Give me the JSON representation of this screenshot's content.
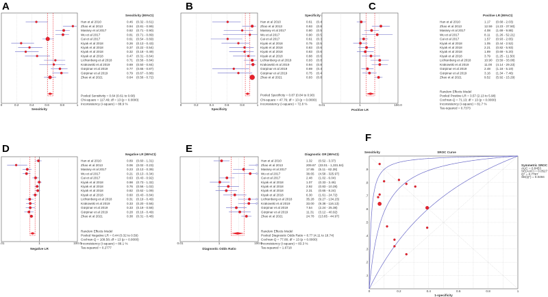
{
  "studies": [
    "Han et al 2010",
    "Zhao et al 2013",
    "Massey et al 2017",
    "Wu et al 2017",
    "Cai et al 2017",
    "Kiyak et al 2018",
    "Kiyak et al 2018",
    "Kiyak et al 2018",
    "Kiyak et al 2018",
    "Lichtenberg et al 2018",
    "Krakowski et al 2019",
    "Gürpinar et al 2019",
    "Gürpinar et al 2019",
    "Zhao et al 2021"
  ],
  "colors": {
    "marker": "#e8202a",
    "ci": "#8080d0",
    "pooled_line": "#e8202a",
    "grid": "#cccccc",
    "curve": "#6a6ac8"
  },
  "chart_data": [
    {
      "id": "A",
      "type": "forest",
      "panel_label": "A",
      "header": "Sensitivity (95%CI)",
      "xlabel": "Sensitivity",
      "scale": "linear",
      "xlim": [
        0,
        1
      ],
      "ticks": [
        "0",
        "0.2",
        "0.4",
        "0.6",
        "0.8",
        "1"
      ],
      "tick_values": [
        0,
        0.2,
        0.4,
        0.6,
        0.8,
        1
      ],
      "est": [
        0.46,
        0.94,
        0.82,
        0.81,
        0.61,
        0.26,
        0.37,
        0.32,
        0.47,
        0.71,
        0.69,
        0.77,
        0.79,
        0.64
      ],
      "lo": [
        0.32,
        0.81,
        0.71,
        0.71,
        0.54,
        0.13,
        0.22,
        0.18,
        0.31,
        0.56,
        0.5,
        0.65,
        0.67,
        0.56
      ],
      "hi": [
        0.61,
        0.99,
        0.9,
        0.89,
        0.69,
        0.43,
        0.54,
        0.49,
        0.64,
        0.84,
        0.84,
        0.87,
        0.88,
        0.72
      ],
      "est_text": [
        "0.46",
        "0.94",
        "0.82",
        "0.81",
        "0.61",
        "0.26",
        "0.37",
        "0.32",
        "0.47",
        "0.71",
        "0.69",
        "0.77",
        "0.79",
        "0.64"
      ],
      "ci_text": [
        "(0.32 - 0.61)",
        "(0.81 - 0.99)",
        "(0.71 - 0.90)",
        "(0.71 - 0.89)",
        "(0.54 - 0.69)",
        "(0.13 - 0.43)",
        "(0.22 - 0.54)",
        "(0.18 - 0.49)",
        "(0.31 - 0.64)",
        "(0.56 - 0.84)",
        "(0.50 - 0.84)",
        "(0.65 - 0.87)",
        "(0.67 - 0.88)",
        "(0.56 - 0.72)"
      ],
      "weight": [
        1,
        1,
        1.2,
        1.2,
        1.9,
        1,
        1,
        1,
        1,
        1,
        1,
        1.1,
        1.1,
        1.6
      ],
      "pooled": {
        "est": 0.64,
        "lo": 0.61,
        "hi": 0.68
      },
      "footer": [
        "Pooled Sensitivity = 0.64 (0.61 to 0.68)",
        "Chi-square = 117.49; df = 13 (p = 0.0000)",
        "Inconsistency (I-square) = 88.9 %"
      ]
    },
    {
      "id": "B",
      "type": "forest",
      "panel_label": "B",
      "header": "Specificity (95%CI)",
      "xlabel": "Specificity",
      "scale": "linear",
      "xlim": [
        0,
        1
      ],
      "ticks": [
        "0",
        "0.2",
        "0.4",
        "0.6",
        "0.8",
        "1"
      ],
      "tick_values": [
        0,
        0.2,
        0.4,
        0.6,
        0.8,
        1
      ],
      "est": [
        0.61,
        0.93,
        0.8,
        0.9,
        0.61,
        0.75,
        0.83,
        0.83,
        0.88,
        0.93,
        0.94,
        0.69,
        0.75,
        0.93
      ],
      "lo": [
        0.41,
        0.8,
        0.56,
        0.55,
        0.39,
        0.53,
        0.63,
        0.63,
        0.68,
        0.82,
        0.85,
        0.41,
        0.48,
        0.89
      ],
      "hi": [
        0.78,
        0.98,
        0.94,
        1.0,
        0.8,
        0.9,
        0.95,
        0.95,
        0.97,
        0.99,
        0.98,
        0.89,
        0.93,
        0.96
      ],
      "est_text": [
        "0.61",
        "0.93",
        "0.80",
        "0.90",
        "0.61",
        "0.75",
        "0.83",
        "0.83",
        "0.88",
        "0.93",
        "0.94",
        "0.69",
        "0.75",
        "0.93"
      ],
      "ci_text": [
        "(0.41 - 0.78)",
        "(0.80 - 0.98)",
        "(0.56 - 0.94)",
        "(0.55 - 1.00)",
        "(0.39 - 0.80)",
        "(0.53 - 0.90)",
        "(0.63 - 0.95)",
        "(0.63 - 0.95)",
        "(0.68 - 0.97)",
        "(0.82 - 0.99)",
        "(0.85 - 0.98)",
        "(0.41 - 0.89)",
        "(0.48 - 0.93)",
        "(0.89 - 0.96)"
      ],
      "weight": [
        1,
        1.3,
        1,
        1,
        1,
        1,
        1,
        1,
        1,
        1.3,
        1.4,
        1,
        1,
        2.4
      ],
      "pooled": {
        "est": 0.87,
        "lo": 0.84,
        "hi": 0.9
      },
      "footer": [
        "Pooled Specificity = 0.87 (0.84 to 0.90)",
        "Chi-square = 47.76; df = 13 (p = 0.0000)",
        "Inconsistency (I-square) = 72.8 %"
      ]
    },
    {
      "id": "C",
      "type": "forest",
      "panel_label": "C",
      "header": "Positive LR (95%CI)",
      "xlabel": "Positive LR",
      "scale": "log",
      "xlim": [
        0.01,
        100
      ],
      "ticks": [
        "0.01",
        "1",
        "100.0"
      ],
      "tick_values": [
        0.01,
        1,
        100
      ],
      "est": [
        1.17,
        12.59,
        4.08,
        8.11,
        1.57,
        1.05,
        2.21,
        1.89,
        3.79,
        10.9,
        11.0,
        2.48,
        3.16,
        9.52
      ],
      "lo": [
        0.68,
        4.23,
        1.69,
        1.26,
        0.93,
        0.44,
        0.82,
        0.69,
        1.25,
        3.59,
        4.14,
        1.18,
        1.34,
        5.92
      ],
      "hi": [
        2.03,
        37.5,
        9.88,
        52.21,
        2.65,
        2.52,
        5.93,
        5.2,
        11.5,
        33.08,
        29.23,
        5.19,
        7.46,
        15.29
      ],
      "est_text": [
        "1.17",
        "12.59",
        "4.08",
        "8.11",
        "1.57",
        "1.05",
        "2.21",
        "1.89",
        "3.79",
        "10.90",
        "11.00",
        "2.48",
        "3.16",
        "9.52"
      ],
      "ci_text": [
        "(0.68 - 2.03)",
        "(4.23 - 37.50)",
        "(1.69 - 9.88)",
        "(1.26 - 52.21)",
        "(0.93 - 2.65)",
        "(0.44 - 2.52)",
        "(0.82 - 5.93)",
        "(0.69 - 5.20)",
        "(1.25 - 11.50)",
        "(3.59 - 33.08)",
        "(4.14 - 29.23)",
        "(1.18 - 5.19)",
        "(1.34 - 7.46)",
        "(5.92 - 15.29)"
      ],
      "weight": [
        1.2,
        1.2,
        1.2,
        1.2,
        1.2,
        1.2,
        1.2,
        1.2,
        1.2,
        1.2,
        1.2,
        1.2,
        1.2,
        1.2
      ],
      "pooled": {
        "est": 3.57,
        "lo": 2.13,
        "hi": 5.98
      },
      "footer": [
        "Random Effects Model",
        "Pooled Positive LR = 3.57 (2.13 to 5.98)",
        "Cochran-Q = 71.13; df = 13 (p = 0.0000)",
        "Inconsistency (I-square) = 81.7 %",
        "Tau-squared = 0.7373"
      ]
    },
    {
      "id": "D",
      "type": "forest",
      "panel_label": "D",
      "header": "Negative LR (95%CI)",
      "xlabel": "Negative LR",
      "scale": "log",
      "xlim": [
        0.01,
        100
      ],
      "ticks": [
        "0.01",
        "1",
        "100.0"
      ],
      "tick_values": [
        0.01,
        1,
        100
      ],
      "est": [
        0.89,
        0.06,
        0.23,
        0.21,
        0.63,
        0.98,
        0.76,
        0.82,
        0.6,
        0.31,
        0.33,
        0.33,
        0.28,
        0.38
      ],
      "lo": [
        0.6,
        0.02,
        0.13,
        0.13,
        0.43,
        0.73,
        0.56,
        0.62,
        0.43,
        0.19,
        0.2,
        0.19,
        0.16,
        0.31
      ],
      "hi": [
        1.31,
        0.23,
        0.39,
        0.34,
        0.92,
        1.32,
        1.02,
        1.09,
        0.84,
        0.49,
        0.56,
        0.58,
        0.49,
        0.48
      ],
      "est_text": [
        "0.89",
        "0.06",
        "0.23",
        "0.21",
        "0.63",
        "0.98",
        "0.76",
        "0.82",
        "0.60",
        "0.31",
        "0.33",
        "0.33",
        "0.28",
        "0.38"
      ],
      "ci_text": [
        "(0.60 - 1.31)",
        "(0.02 - 0.23)",
        "(0.13 - 0.39)",
        "(0.13 - 0.34)",
        "(0.43 - 0.92)",
        "(0.73 - 1.32)",
        "(0.56 - 1.02)",
        "(0.62 - 1.09)",
        "(0.43 - 0.84)",
        "(0.19 - 0.49)",
        "(0.20 - 0.56)",
        "(0.19 - 0.58)",
        "(0.16 - 0.49)",
        "(0.31 - 0.48)"
      ],
      "weight": [
        1.2,
        1,
        1.2,
        1.2,
        1.2,
        1.2,
        1.2,
        1.2,
        1.2,
        1.2,
        1.2,
        1.2,
        1.2,
        1.3
      ],
      "pooled": {
        "est": 0.44,
        "lo": 0.32,
        "hi": 0.59
      },
      "footer": [
        "Random Effects Model",
        "Pooled Negative LR = 0.44 (0.32 to 0.59)",
        "Cochran-Q = 109.58; df = 13 (p = 0.0000)",
        "Inconsistency (I-square) = 88.1 %",
        "Tau-squared = 0.2777"
      ]
    },
    {
      "id": "E",
      "type": "forest",
      "panel_label": "E",
      "header": "Diagnostic OR (95%CI)",
      "xlabel": "Diagnostic Odds Ratio",
      "scale": "log",
      "xlim": [
        0.01,
        100
      ],
      "ticks": [
        "0.01",
        "1",
        "100.0"
      ],
      "tick_values": [
        0.01,
        1,
        100
      ],
      "est": [
        1.32,
        209.67,
        17.85,
        38.65,
        2.48,
        1.07,
        2.92,
        2.31,
        6.3,
        35.28,
        33.0,
        7.54,
        11.31,
        24.78
      ],
      "lo": [
        0.52,
        33.01,
        5.11,
        4.58,
        1.02,
        0.33,
        0.83,
        0.65,
        1.61,
        9.27,
        9.38,
        2.24,
        3.12,
        13.65
      ],
      "hi": [
        3.37,
        1331.84,
        62.28,
        325.97,
        6.04,
        3.46,
        10.28,
        8.24,
        24.72,
        134.23,
        116.13,
        25.38,
        40.92,
        44.97
      ],
      "est_text": [
        "1.32",
        "209.67",
        "17.85",
        "38.65",
        "2.48",
        "1.07",
        "2.92",
        "2.31",
        "6.30",
        "35.28",
        "33.00",
        "7.54",
        "11.31",
        "24.78"
      ],
      "ci_text": [
        "(0.52 - 3.37)",
        "(33.01 - 1,331.84)",
        "(5.11 - 62.28)",
        "(4.58 - 325.97)",
        "(1.02 - 6.04)",
        "(0.33 - 3.46)",
        "(0.83 - 10.28)",
        "(0.65 - 8.24)",
        "(1.61 - 24.72)",
        "(9.27 - 134.23)",
        "(9.38 - 116.13)",
        "(2.24 - 25.38)",
        "(3.12 - 40.92)",
        "(13.65 - 44.97)"
      ],
      "weight": [
        1.2,
        1.2,
        1.2,
        1.2,
        1.2,
        1.2,
        1.2,
        1.2,
        1.2,
        1.2,
        1.2,
        1.2,
        1.2,
        1.2
      ],
      "pooled": {
        "est": 8.77,
        "lo": 4.11,
        "hi": 18.74
      },
      "footer": [
        "Random Effects Model",
        "Pooled Diagnostic Odds Ratio = 8.77 (4.11 to 18.74)",
        "Cochran-Q = 77.80; df = 13 (p = 0.0000)",
        "Inconsistency (I-square) = 83.3 %",
        "Tau-squared = 1.6718"
      ]
    },
    {
      "id": "F",
      "type": "scatter",
      "panel_label": "F",
      "title": "SROC Curve",
      "xlabel": "1-specificity",
      "ylabel": "Sensitivity",
      "xlim": [
        0,
        1
      ],
      "ylim": [
        0,
        1
      ],
      "xticks": [
        "0",
        "0.2",
        "0.4",
        "0.6",
        "0.8",
        "1"
      ],
      "xtick_values": [
        0,
        0.2,
        0.4,
        0.6,
        0.8,
        1
      ],
      "yticks": [
        ".1",
        ".2",
        ".3",
        ".4",
        ".5",
        ".6",
        ".7",
        ".8",
        ".9"
      ],
      "ytick_values": [
        0.1,
        0.2,
        0.3,
        0.4,
        0.5,
        0.6,
        0.7,
        0.8,
        0.9
      ],
      "x": [
        0.39,
        0.07,
        0.2,
        0.1,
        0.39,
        0.25,
        0.17,
        0.17,
        0.12,
        0.07,
        0.06,
        0.31,
        0.25,
        0.07
      ],
      "y": [
        0.46,
        0.94,
        0.82,
        0.81,
        0.61,
        0.26,
        0.37,
        0.32,
        0.47,
        0.71,
        0.69,
        0.77,
        0.79,
        0.64
      ],
      "weight": [
        1,
        1,
        1,
        1,
        1.6,
        1,
        1,
        1,
        1,
        1,
        1,
        1,
        1,
        1.8
      ],
      "curve_dor": [
        2.3,
        12.36,
        80
      ],
      "legend": [
        "Symmetric SROC",
        "AUC = 0.8453",
        "SE(AUC) = 0.0527",
        "Q* = 0.7787",
        "SE(Q*) = 0.0494"
      ]
    }
  ]
}
